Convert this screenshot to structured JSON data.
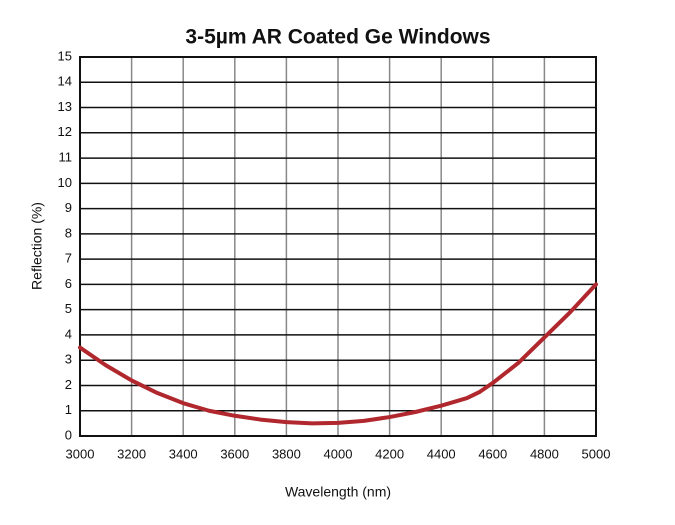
{
  "chart_data": {
    "type": "line",
    "title": "3-5µm AR Coated Ge Windows",
    "x_label": "Wavelength (nm)",
    "y_label": "Reflection (%)",
    "x": [
      3000,
      3100,
      3200,
      3300,
      3400,
      3500,
      3600,
      3700,
      3800,
      3900,
      4000,
      4100,
      4200,
      4300,
      4400,
      4500,
      4550,
      4600,
      4700,
      4800,
      4900,
      5000
    ],
    "series": [
      {
        "color": "#b0272d",
        "values": [
          3.5,
          2.8,
          2.2,
          1.7,
          1.3,
          1.0,
          0.8,
          0.65,
          0.55,
          0.5,
          0.52,
          0.6,
          0.75,
          0.95,
          1.2,
          1.5,
          1.75,
          2.1,
          2.9,
          3.9,
          4.9,
          6.0
        ]
      }
    ],
    "xlim": [
      3000,
      5000
    ],
    "ylim": [
      0,
      15
    ],
    "xticks": [
      3000,
      3200,
      3400,
      3600,
      3800,
      4000,
      4200,
      4400,
      4600,
      4800,
      5000
    ],
    "yticks": [
      0,
      1,
      2,
      3,
      4,
      5,
      6,
      7,
      8,
      9,
      10,
      11,
      12,
      13,
      14,
      15
    ],
    "grid": true
  }
}
